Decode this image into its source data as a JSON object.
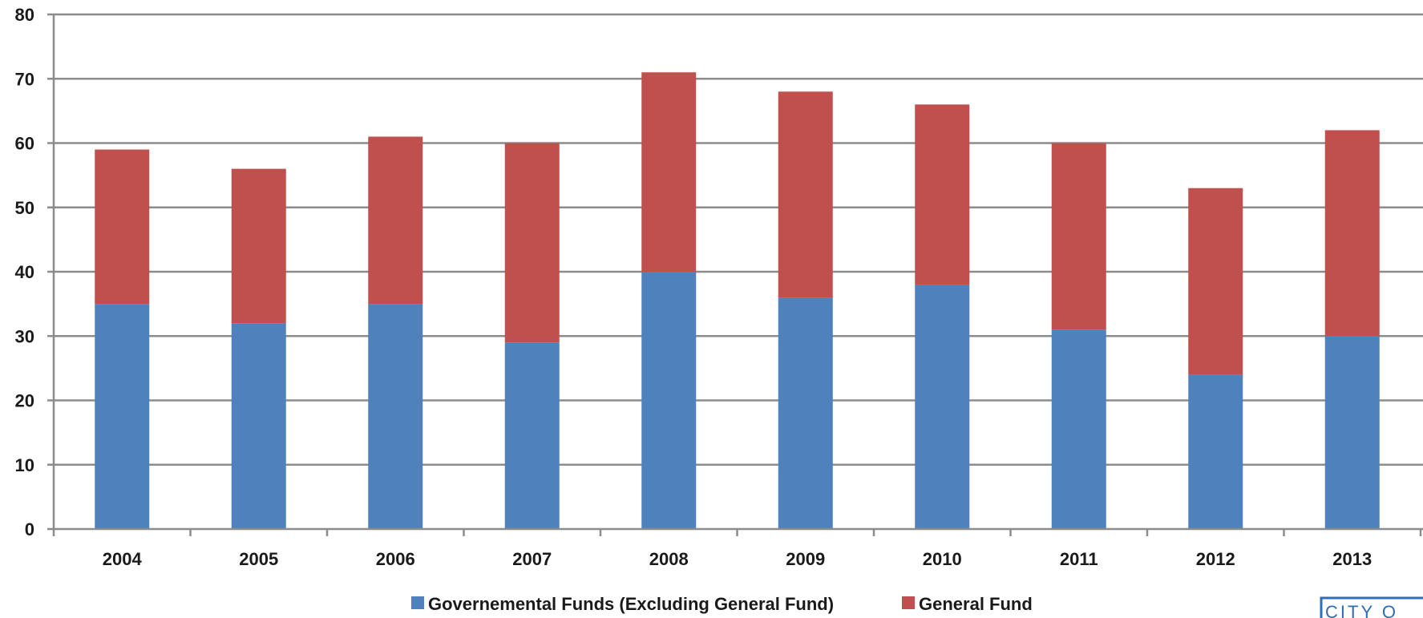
{
  "chart_data": {
    "type": "bar",
    "stacked": true,
    "categories": [
      "2004",
      "2005",
      "2006",
      "2007",
      "2008",
      "2009",
      "2010",
      "2011",
      "2012",
      "2013"
    ],
    "series": [
      {
        "name": "Governemental Funds (Excluding General Fund)",
        "color": "#4f81bd",
        "values": [
          35,
          32,
          35,
          29,
          40,
          36,
          38,
          31,
          24,
          30
        ]
      },
      {
        "name": "General Fund",
        "color": "#c0504d",
        "values": [
          24,
          24,
          26,
          31,
          31,
          32,
          28,
          29,
          29,
          32
        ]
      }
    ],
    "ylim": [
      0,
      80
    ],
    "yticks": [
      0,
      10,
      20,
      30,
      40,
      50,
      60,
      70,
      80
    ],
    "grid": true,
    "legend_position": "bottom",
    "title": "",
    "xlabel": "",
    "ylabel": ""
  },
  "corner_mark": {
    "text": "CITY O",
    "color": "#2f6db5"
  }
}
